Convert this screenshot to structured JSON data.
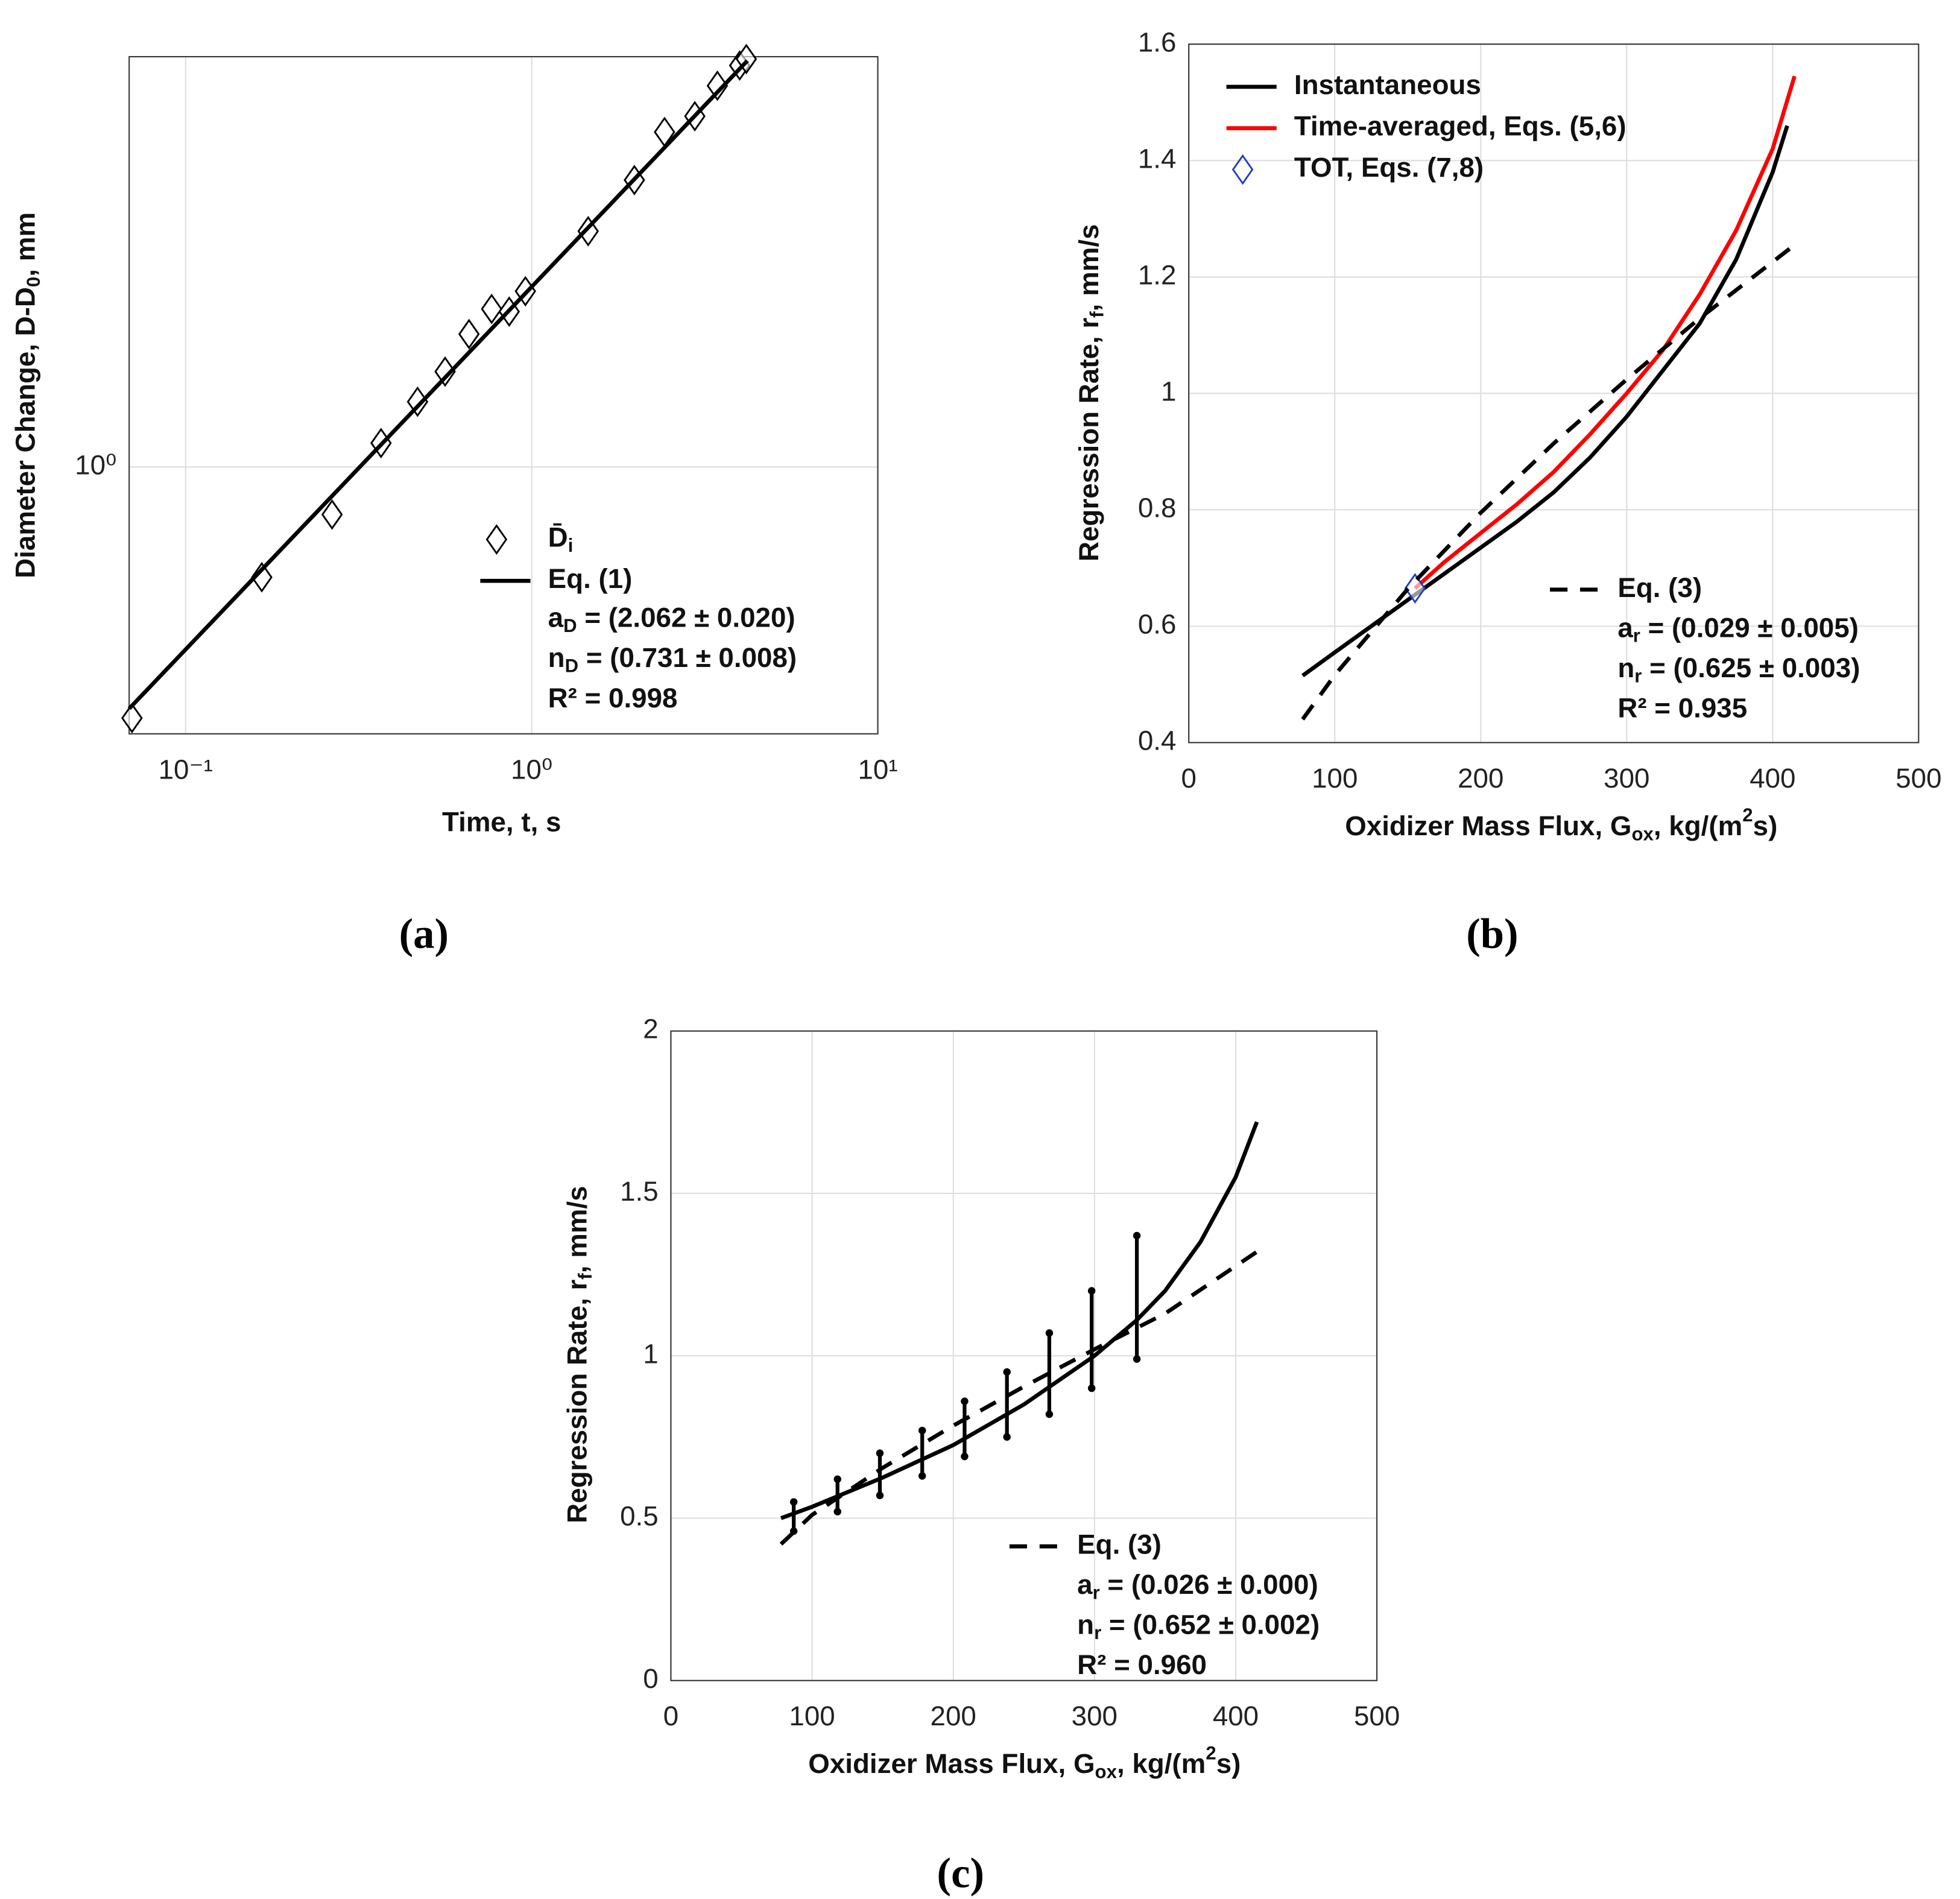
{
  "chart_data": [
    {
      "type": "line",
      "label": "(a)",
      "xscale": "log",
      "yscale": "log",
      "grid": true,
      "xlabel": "Time, t, s",
      "ylabel": [
        {
          "text": "Diameter Change, D-D"
        },
        {
          "text": "0",
          "sub": true
        },
        {
          "text": ", mm"
        }
      ],
      "xlim": [
        0.0687,
        10
      ],
      "ylim": [
        0.294,
        6.57
      ],
      "xticks": [
        {
          "value": 0.1,
          "label": "10⁻¹"
        },
        {
          "value": 1,
          "label": "10⁰"
        },
        {
          "value": 10,
          "label": "10¹"
        }
      ],
      "yticks": [
        {
          "value": 1,
          "label": "10⁰"
        }
      ],
      "series": [
        {
          "name": [
            {
              "text": "D̄"
            },
            {
              "text": "i",
              "sub": true
            }
          ],
          "style": "markers",
          "color": "#000000",
          "legend": "lower right",
          "x": [
            0.07,
            0.166,
            0.265,
            0.367,
            0.468,
            0.562,
            0.659,
            0.766,
            0.861,
            0.959,
            1.456,
            1.98,
            2.42,
            2.96,
            3.44,
            3.99,
            4.17
          ],
          "values": [
            0.316,
            0.603,
            0.804,
            1.116,
            1.349,
            1.549,
            1.84,
            2.065,
            2.04,
            2.24,
            2.95,
            3.73,
            4.65,
            5.0,
            5.75,
            6.31,
            6.5
          ]
        },
        {
          "name": "Eq. (1)",
          "style": "solid",
          "color": "#000000",
          "legend": "lower right",
          "x": [
            0.0687,
            4.2
          ],
          "values": [
            0.33,
            6.45
          ]
        }
      ],
      "annotations": [
        [
          {
            "text": "a"
          },
          {
            "text": "D",
            "sub": true
          },
          {
            "text": " = (2.062 ± 0.020)"
          }
        ],
        [
          {
            "text": "n"
          },
          {
            "text": "D",
            "sub": true
          },
          {
            "text": " = (0.731 ± 0.008)"
          }
        ],
        "R² = 0.998"
      ]
    },
    {
      "type": "line",
      "label": "(b)",
      "xscale": "linear",
      "yscale": "linear",
      "grid": true,
      "xlabel": [
        {
          "text": "Oxidizer Mass Flux, G"
        },
        {
          "text": "ox",
          "sub": true
        },
        {
          "text": ", kg/(m"
        },
        {
          "text": "2",
          "sup": true
        },
        {
          "text": "s)"
        }
      ],
      "ylabel": [
        {
          "text": "Regression Rate, r"
        },
        {
          "text": "f",
          "sub": true
        },
        {
          "text": ", mm/s"
        }
      ],
      "xlim": [
        0,
        500
      ],
      "ylim": [
        0.4,
        1.6
      ],
      "xticks": [
        0,
        100,
        200,
        300,
        400,
        500
      ],
      "yticks": [
        0.4,
        0.6,
        0.8,
        1,
        1.2,
        1.4,
        1.6
      ],
      "series": [
        {
          "name": "Instantaneous",
          "style": "solid",
          "color": "#000000",
          "legend": "upper left",
          "x": [
            78,
            100,
            125,
            150,
            175,
            200,
            225,
            250,
            275,
            300,
            325,
            350,
            375,
            400,
            410
          ],
          "values": [
            0.515,
            0.555,
            0.6,
            0.645,
            0.69,
            0.735,
            0.78,
            0.83,
            0.89,
            0.96,
            1.04,
            1.12,
            1.23,
            1.38,
            1.46
          ]
        },
        {
          "name": "Time-averaged, Eqs. (5,6)",
          "style": "solid",
          "color": "#ff0000",
          "legend": "upper left",
          "x": [
            155,
            175,
            200,
            225,
            250,
            275,
            300,
            325,
            350,
            375,
            400,
            415
          ],
          "values": [
            0.665,
            0.71,
            0.76,
            0.81,
            0.865,
            0.93,
            1.0,
            1.075,
            1.17,
            1.28,
            1.42,
            1.545
          ]
        },
        {
          "name": "TOT, Eqs. (7,8)",
          "style": "markers",
          "color": "#1f3fbf",
          "legend": "upper left",
          "x": [
            155
          ],
          "values": [
            0.665
          ]
        },
        {
          "name": "Eq. (3)",
          "style": "dashed",
          "color": "#000000",
          "legend": "lower right",
          "x": [
            78,
            100,
            150,
            200,
            250,
            300,
            350,
            415
          ],
          "values": [
            0.44,
            0.516,
            0.664,
            0.795,
            0.914,
            1.024,
            1.129,
            1.255
          ]
        }
      ],
      "annotations": [
        [
          {
            "text": "a"
          },
          {
            "text": "r",
            "sub": true
          },
          {
            "text": " = (0.029 ± 0.005)"
          }
        ],
        [
          {
            "text": "n"
          },
          {
            "text": "r",
            "sub": true
          },
          {
            "text": " = (0.625 ± 0.003)"
          }
        ],
        "R² = 0.935"
      ]
    },
    {
      "type": "line",
      "label": "(c)",
      "xscale": "linear",
      "yscale": "linear",
      "grid": true,
      "xlabel": [
        {
          "text": "Oxidizer Mass Flux, G"
        },
        {
          "text": "ox",
          "sub": true
        },
        {
          "text": ", kg/(m"
        },
        {
          "text": "2",
          "sup": true
        },
        {
          "text": "s)"
        }
      ],
      "ylabel": [
        {
          "text": "Regression Rate, r"
        },
        {
          "text": "f",
          "sub": true
        },
        {
          "text": ", mm/s"
        }
      ],
      "xlim": [
        0,
        500
      ],
      "ylim": [
        0,
        2
      ],
      "xticks": [
        0,
        100,
        200,
        300,
        400,
        500
      ],
      "yticks": [
        0,
        0.5,
        1,
        1.5,
        2
      ],
      "series": [
        {
          "style": "solid",
          "color": "#000000",
          "x": [
            78,
            100,
            150,
            200,
            250,
            300,
            330,
            350,
            375,
            400,
            415
          ],
          "values": [
            0.5,
            0.535,
            0.625,
            0.725,
            0.85,
            1.0,
            1.11,
            1.2,
            1.35,
            1.55,
            1.72
          ]
        },
        {
          "style": "errorbars",
          "color": "#000000",
          "x": [
            87,
            118,
            148,
            178,
            208,
            238,
            268,
            298,
            330
          ],
          "values": [
            0.505,
            0.57,
            0.635,
            0.7,
            0.775,
            0.85,
            0.945,
            1.05,
            1.18
          ],
          "errors": [
            0.045,
            0.05,
            0.065,
            0.07,
            0.085,
            0.1,
            0.125,
            0.15,
            0.19
          ]
        },
        {
          "name": "Eq. (3)",
          "style": "dashed",
          "color": "#000000",
          "legend": "lower right",
          "x": [
            78,
            100,
            150,
            200,
            250,
            300,
            350,
            415
          ],
          "values": [
            0.42,
            0.51,
            0.655,
            0.785,
            0.905,
            1.02,
            1.13,
            1.32
          ]
        }
      ],
      "annotations": [
        [
          {
            "text": "a"
          },
          {
            "text": "r",
            "sub": true
          },
          {
            "text": " = (0.026 ± 0.000)"
          }
        ],
        [
          {
            "text": "n"
          },
          {
            "text": "r",
            "sub": true
          },
          {
            "text": " = (0.652 ± 0.002)"
          }
        ],
        "R² = 0.960"
      ]
    }
  ]
}
